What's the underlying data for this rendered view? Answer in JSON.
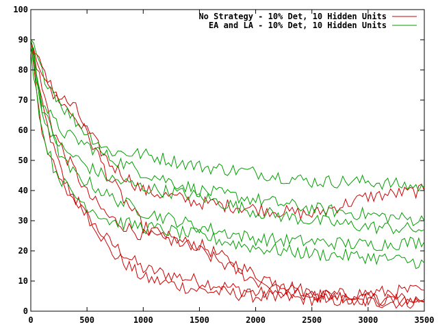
{
  "chart_data": {
    "type": "line",
    "title": "",
    "xlabel": "",
    "ylabel": "",
    "xlim": [
      0,
      3500
    ],
    "ylim": [
      0,
      100
    ],
    "xticks": [
      0,
      500,
      1000,
      1500,
      2000,
      2500,
      3000,
      3500
    ],
    "yticks": [
      0,
      10,
      20,
      30,
      40,
      50,
      60,
      70,
      80,
      90,
      100
    ],
    "grid": false,
    "legend_position": "top-right",
    "legend": [
      {
        "label": "No Strategy - 10% Det, 10 Hidden Units",
        "color": "#cc0000"
      },
      {
        "label": "EA and LA - 10% Det, 10 Hidden Units",
        "color": "#00a000"
      }
    ],
    "series": [
      {
        "group": 0,
        "color": "#cc0000",
        "x": [
          0,
          100,
          200,
          300,
          400,
          500,
          700,
          1000,
          1500,
          2000,
          2500,
          3000,
          3500
        ],
        "y": [
          90,
          68,
          54,
          43,
          37,
          31,
          23,
          14,
          10,
          6,
          5,
          4,
          4
        ]
      },
      {
        "group": 0,
        "color": "#cc0000",
        "x": [
          0,
          100,
          200,
          300,
          400,
          500,
          700,
          1000,
          1500,
          2000,
          2500,
          3000,
          3500
        ],
        "y": [
          88,
          60,
          48,
          40,
          37,
          33,
          20,
          11,
          7,
          5,
          4,
          3,
          3
        ]
      },
      {
        "group": 0,
        "color": "#cc0000",
        "x": [
          0,
          100,
          200,
          300,
          400,
          500,
          700,
          1000,
          1500,
          2000,
          2500,
          3000,
          3500
        ],
        "y": [
          90,
          74,
          60,
          52,
          46,
          39,
          31,
          25,
          22,
          12,
          6,
          4,
          3
        ]
      },
      {
        "group": 0,
        "color": "#cc0000",
        "x": [
          0,
          100,
          200,
          300,
          400,
          500,
          700,
          1000,
          1500,
          2000,
          2500,
          3000,
          3500
        ],
        "y": [
          90,
          80,
          72,
          70,
          67,
          60,
          49,
          40,
          36,
          34,
          32,
          38,
          40
        ]
      },
      {
        "group": 0,
        "color": "#cc0000",
        "x": [
          0,
          100,
          200,
          300,
          400,
          500,
          700,
          1000,
          1500,
          2000,
          2500,
          3000,
          3500
        ],
        "y": [
          88,
          80,
          73,
          68,
          64,
          59,
          44,
          28,
          20,
          10,
          5,
          6,
          7
        ]
      },
      {
        "group": 1,
        "color": "#00a000",
        "x": [
          0,
          100,
          200,
          300,
          400,
          500,
          700,
          1000,
          1500,
          2000,
          2500,
          3000,
          3500
        ],
        "y": [
          90,
          79,
          73,
          67,
          63,
          59,
          53,
          52,
          48,
          46,
          43,
          43,
          41
        ]
      },
      {
        "group": 1,
        "color": "#00a000",
        "x": [
          0,
          100,
          200,
          300,
          400,
          500,
          700,
          1000,
          1500,
          2000,
          2500,
          3000,
          3500
        ],
        "y": [
          90,
          70,
          63,
          59,
          57,
          55,
          51,
          46,
          40,
          37,
          34,
          32,
          30
        ]
      },
      {
        "group": 1,
        "color": "#00a000",
        "x": [
          0,
          100,
          200,
          300,
          400,
          500,
          700,
          1000,
          1500,
          2000,
          2500,
          3000,
          3500
        ],
        "y": [
          88,
          68,
          58,
          53,
          51,
          48,
          44,
          41,
          38,
          33,
          30,
          28,
          27
        ]
      },
      {
        "group": 1,
        "color": "#00a000",
        "x": [
          0,
          100,
          200,
          300,
          400,
          500,
          700,
          1000,
          1500,
          2000,
          2500,
          3000,
          3500
        ],
        "y": [
          88,
          66,
          57,
          49,
          45,
          43,
          38,
          33,
          28,
          24,
          23,
          22,
          23
        ]
      },
      {
        "group": 1,
        "color": "#00a000",
        "x": [
          0,
          100,
          200,
          300,
          400,
          500,
          700,
          1000,
          1500,
          2000,
          2500,
          3000,
          3500
        ],
        "y": [
          86,
          60,
          48,
          42,
          38,
          35,
          30,
          28,
          25,
          21,
          19,
          18,
          16
        ]
      }
    ]
  }
}
